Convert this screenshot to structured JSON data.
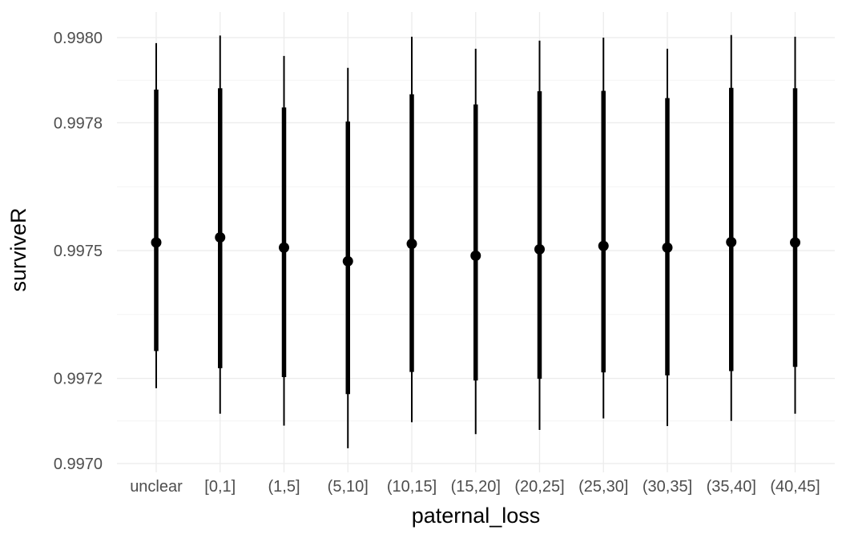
{
  "chart_data": {
    "type": "pointrange",
    "title": "",
    "xlabel": "paternal_loss",
    "ylabel": "surviveR",
    "categories": [
      "unclear",
      "[0,1]",
      "(1,5]",
      "(5,10]",
      "(10,15]",
      "(15,20]",
      "(20,25]",
      "(25,30]",
      "(30,35]",
      "(35,40]",
      "(40,45]"
    ],
    "ylim": [
      0.997,
      0.998
    ],
    "yticks": [
      0.997,
      0.9972,
      0.9975,
      0.9978,
      0.998
    ],
    "ytick_labels": [
      "0.9970",
      "0.9972",
      "0.9975",
      "0.9978",
      "0.9980"
    ],
    "grid": true,
    "series": [
      {
        "point": [
          0.997519,
          0.997531,
          0.997507,
          0.997475,
          0.997516,
          0.997488,
          0.997503,
          0.997511,
          0.997507,
          0.99752,
          0.997519
        ],
        "inner_lo": [
          0.997264,
          0.997224,
          0.997203,
          0.997163,
          0.997215,
          0.997195,
          0.997199,
          0.997214,
          0.997207,
          0.997217,
          0.997227
        ],
        "inner_hi": [
          0.997878,
          0.997881,
          0.997836,
          0.997803,
          0.997867,
          0.997843,
          0.997874,
          0.997875,
          0.997858,
          0.997882,
          0.997881
        ],
        "outer_lo": [
          0.997177,
          0.997117,
          0.997089,
          0.997036,
          0.997097,
          0.997069,
          0.997079,
          0.997106,
          0.997088,
          0.9971,
          0.997117
        ],
        "outer_hi": [
          0.997987,
          0.998005,
          0.997957,
          0.997929,
          0.998002,
          0.997974,
          0.997993,
          0.998,
          0.997974,
          0.998006,
          0.998002
        ]
      }
    ],
    "colors": {
      "mark": "#000000",
      "grid": "#ebebeb",
      "tick_text": "#4d4d4d"
    }
  }
}
